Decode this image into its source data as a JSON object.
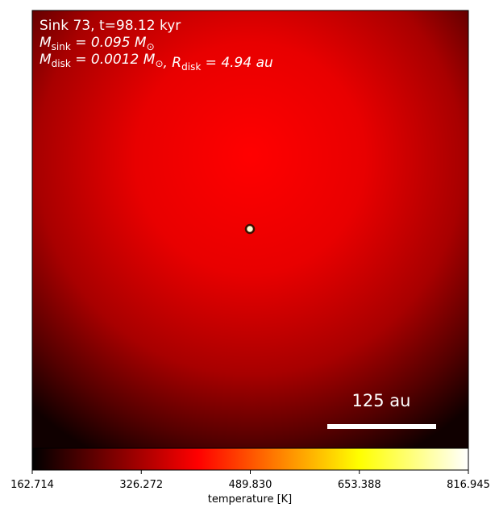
{
  "chart_data": {
    "type": "image",
    "annotations": [
      {
        "text": "Sink 73, t=98.12 kyr"
      },
      {
        "parts": [
          {
            "symbol": "M",
            "sub": "sink",
            "rest": " = 0.095 M"
          },
          {
            "sub": "⊙"
          }
        ]
      },
      {
        "parts": [
          {
            "symbol": "M",
            "sub": "disk",
            "rest": " = 0.0012 M"
          },
          {
            "sub": "⊙"
          },
          {
            "symbol": ", R",
            "sub": "disk",
            "rest": " = 4.94 au"
          }
        ]
      }
    ],
    "scale_bar_label": "125 au",
    "colorbar_label": "temperature [K]",
    "clim": [
      162.714,
      816.945
    ],
    "colorbar_ticks": [
      162.714,
      326.272,
      {
        "value": 489.83,
        "label": "489.830"
      },
      653.388,
      816.945
    ],
    "colormap": [
      "#000000",
      "#ff0000",
      "#ffff00",
      "#ffffff"
    ]
  }
}
